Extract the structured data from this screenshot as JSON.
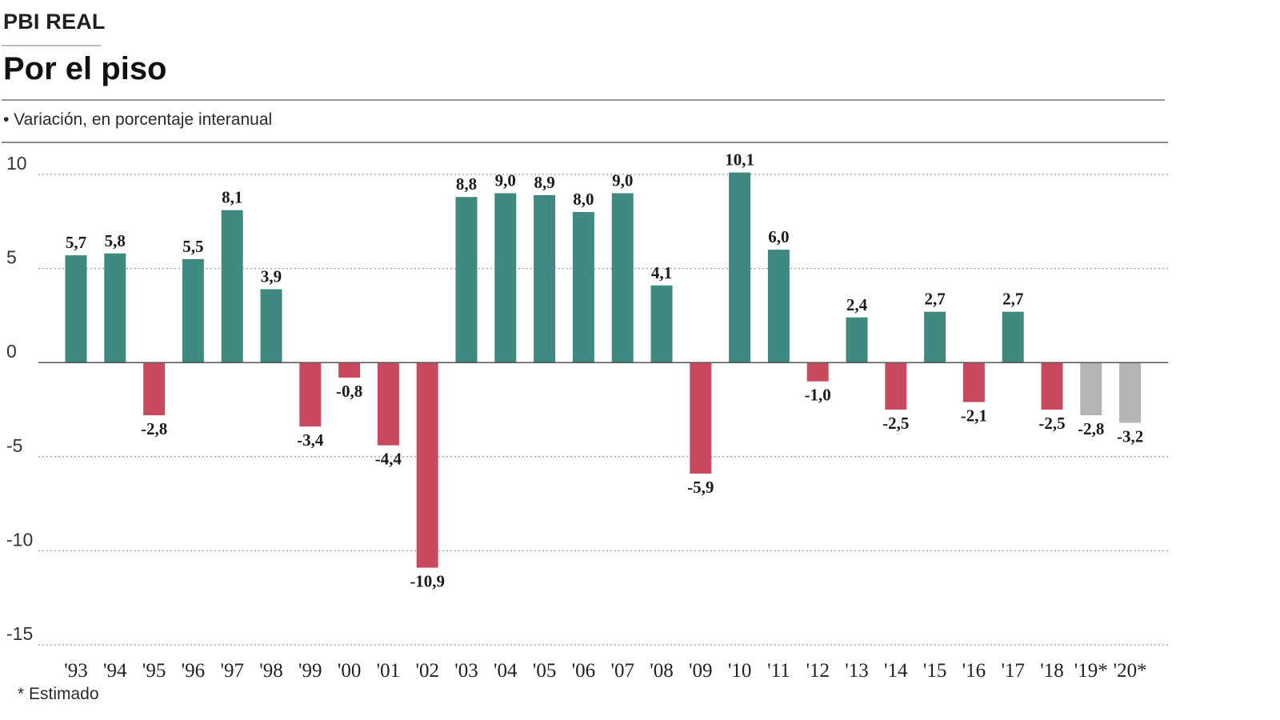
{
  "header": {
    "kicker": "PBI REAL",
    "title": "Por el piso",
    "subtitle": "• Variación, en porcentaje interanual"
  },
  "footnote": "* Estimado",
  "colors": {
    "positive": "#3f8a80",
    "negative": "#c94a5e",
    "estimated": "#b5b5b5",
    "grid": "#9a9a9a",
    "zero_line": "#555555"
  },
  "chart_data": {
    "type": "bar",
    "categories": [
      "'93",
      "'94",
      "'95",
      "'96",
      "'97",
      "'98",
      "'99",
      "'00",
      "'01",
      "'02",
      "'03",
      "'04",
      "'05",
      "'06",
      "'07",
      "'08",
      "'09",
      "'10",
      "'11",
      "'12",
      "'13",
      "'14",
      "'15",
      "'16",
      "'17",
      "'18",
      "'19*",
      "'20*"
    ],
    "values": [
      5.7,
      5.8,
      -2.8,
      5.5,
      8.1,
      3.9,
      -3.4,
      -0.8,
      -4.4,
      -10.9,
      8.8,
      9.0,
      8.9,
      8.0,
      9.0,
      4.1,
      -5.9,
      10.1,
      6.0,
      -1.0,
      2.4,
      -2.5,
      2.7,
      -2.1,
      2.7,
      -2.5,
      -2.8,
      -3.2
    ],
    "value_labels": [
      "5,7",
      "5,8",
      "-2,8",
      "5,5",
      "8,1",
      "3,9",
      "-3,4",
      "-0,8",
      "-4,4",
      "-10,9",
      "8,8",
      "9,0",
      "8,9",
      "8,0",
      "9,0",
      "4,1",
      "-5,9",
      "10,1",
      "6,0",
      "-1,0",
      "2,4",
      "-2,5",
      "2,7",
      "-2,1",
      "2,7",
      "-2,5",
      "-2,8",
      "-3,2"
    ],
    "estimated": [
      false,
      false,
      false,
      false,
      false,
      false,
      false,
      false,
      false,
      false,
      false,
      false,
      false,
      false,
      false,
      false,
      false,
      false,
      false,
      false,
      false,
      false,
      false,
      false,
      false,
      false,
      true,
      true
    ],
    "yticks": [
      10,
      5,
      0,
      -5,
      -10,
      -15
    ],
    "ytick_labels": [
      "10",
      "5",
      "0",
      "-5",
      "-10",
      "-15"
    ],
    "ylim": [
      -15,
      10
    ],
    "grid": true,
    "xlabel": "",
    "ylabel": ""
  }
}
